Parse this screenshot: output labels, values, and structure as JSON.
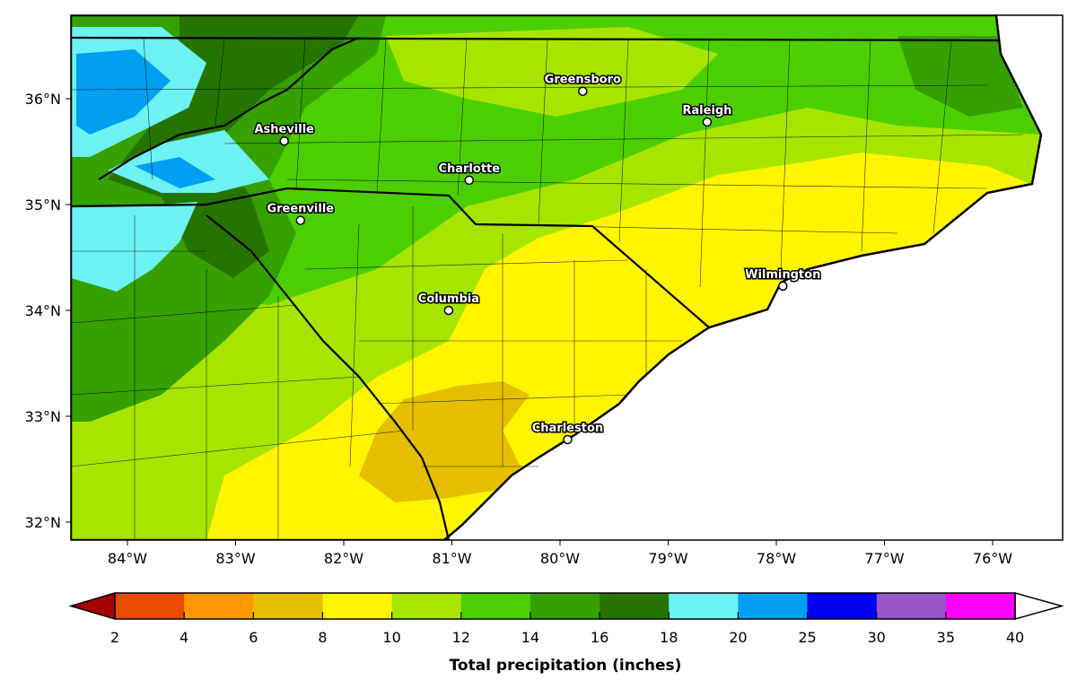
{
  "map": {
    "lon_ticks": [
      {
        "value": -84,
        "label": "84°W"
      },
      {
        "value": -83,
        "label": "83°W"
      },
      {
        "value": -82,
        "label": "82°W"
      },
      {
        "value": -81,
        "label": "81°W"
      },
      {
        "value": -80,
        "label": "80°W"
      },
      {
        "value": -79,
        "label": "79°W"
      },
      {
        "value": -78,
        "label": "78°W"
      },
      {
        "value": -77,
        "label": "77°W"
      },
      {
        "value": -76,
        "label": "76°W"
      }
    ],
    "lat_ticks": [
      {
        "value": 36,
        "label": "36°N"
      },
      {
        "value": 35,
        "label": "35°N"
      },
      {
        "value": 34,
        "label": "34°N"
      },
      {
        "value": 33,
        "label": "33°N"
      },
      {
        "value": 32,
        "label": "32°N"
      }
    ],
    "extent": {
      "lon": [
        -84.52,
        -75.35
      ],
      "lat": [
        31.83,
        36.77
      ]
    },
    "cities": [
      {
        "name": "Greensboro",
        "lon": -79.79,
        "lat": 36.07
      },
      {
        "name": "Raleigh",
        "lon": -78.64,
        "lat": 35.78
      },
      {
        "name": "Asheville",
        "lon": -82.55,
        "lat": 35.6
      },
      {
        "name": "Charlotte",
        "lon": -80.84,
        "lat": 35.23
      },
      {
        "name": "Greenville",
        "lon": -82.4,
        "lat": 34.85
      },
      {
        "name": "Columbia",
        "lon": -81.03,
        "lat": 34.0
      },
      {
        "name": "Wilmington",
        "lon": -77.94,
        "lat": 34.23
      },
      {
        "name": "Charleston",
        "lon": -79.93,
        "lat": 32.78
      }
    ]
  },
  "colorbar": {
    "title": "Total precipitation (inches)",
    "ticks": [
      "2",
      "4",
      "6",
      "8",
      "10",
      "12",
      "14",
      "16",
      "18",
      "20",
      "25",
      "30",
      "35",
      "40"
    ],
    "under_color": "#a50000",
    "over_color": "#ffffff",
    "colors": [
      "#e84a00",
      "#ff9800",
      "#e5be00",
      "#fff500",
      "#a6e500",
      "#4ccf00",
      "#35a000",
      "#267400",
      "#6cf2f2",
      "#009ff2",
      "#0000f2",
      "#9955c8",
      "#ff00ff"
    ]
  },
  "fill_colors": {
    "c6_8": "#e5be00",
    "c8_10": "#fff500",
    "c10_12": "#a6e500",
    "c12_14": "#4ccf00",
    "c14_16": "#35a000",
    "c16_18": "#267400",
    "c18_20": "#6cf2f2",
    "c20_25": "#009ff2",
    "c25_30": "#0000f2"
  }
}
